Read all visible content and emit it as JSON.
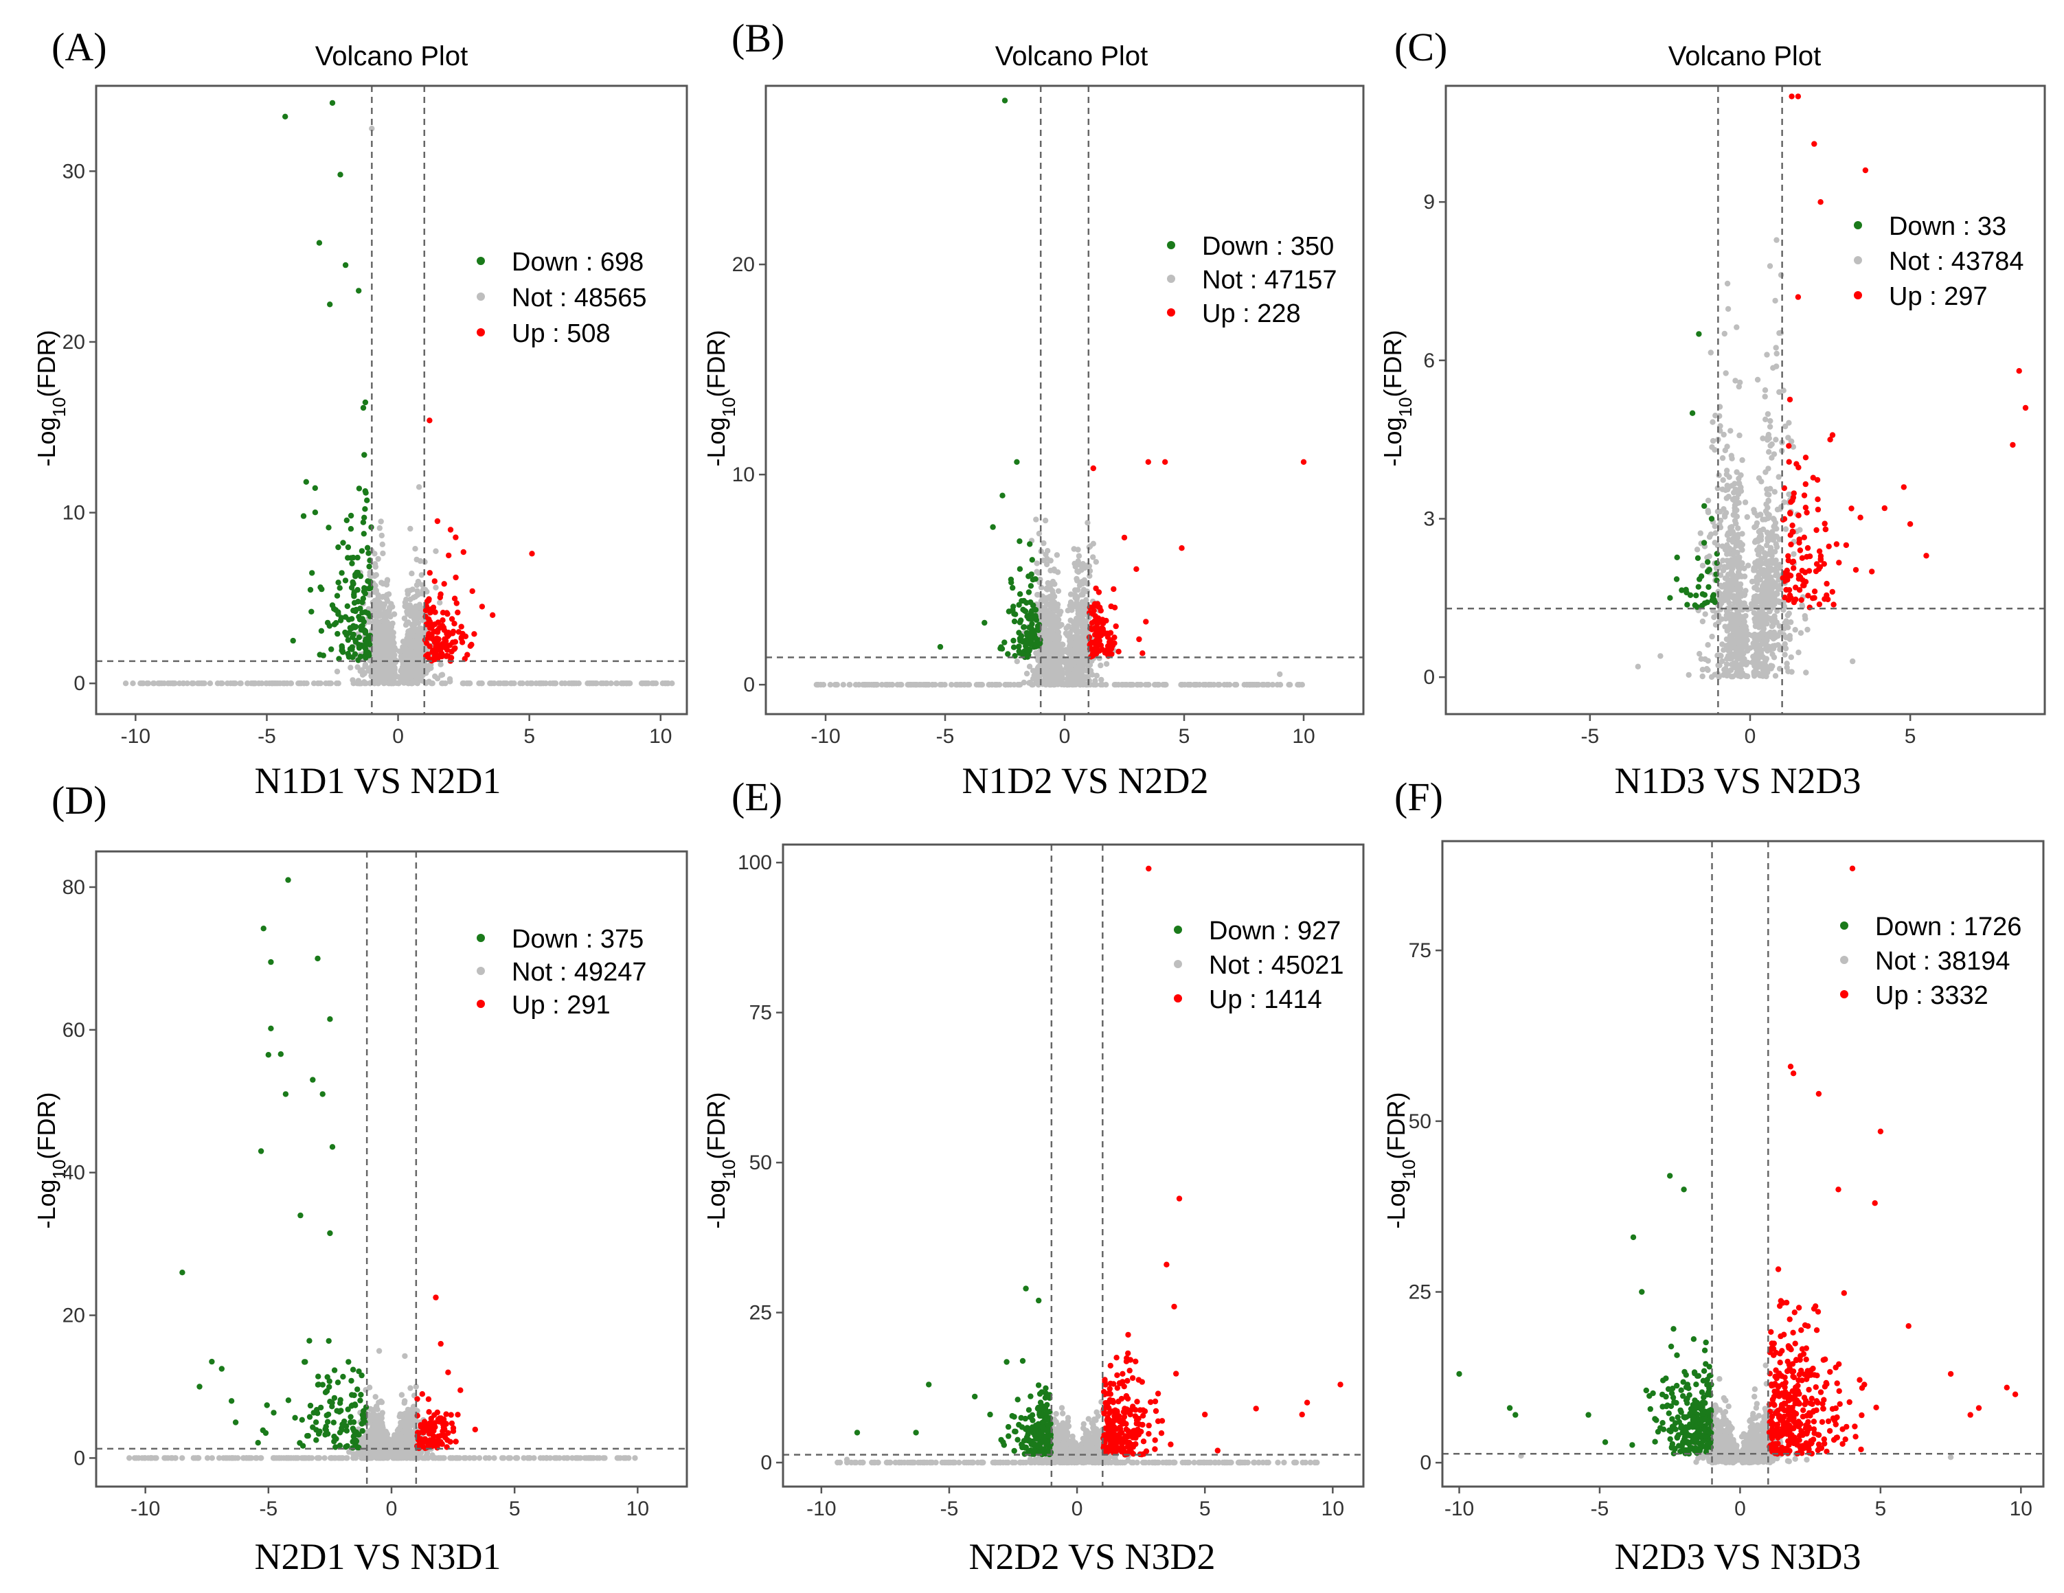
{
  "colors": {
    "down": "#1a7a1a",
    "not": "#bebebe",
    "up": "#ff0000",
    "frame": "#555555",
    "threshold_line": "#666666",
    "text": "#000000"
  },
  "chart_data": [
    {
      "type": "scatter",
      "panel_label": "(A)",
      "title": "Volcano Plot",
      "xlabel": "N1D1 VS N2D1",
      "ylabel_main": "-Log",
      "ylabel_sub": "10",
      "ylabel_arg": "(FDR)",
      "xlim": [
        -11.5,
        11
      ],
      "ylim": [
        -1.8,
        35
      ],
      "xticks": [
        -10,
        -5,
        0,
        5,
        10
      ],
      "yticks": [
        0,
        10,
        20,
        30
      ],
      "fc_threshold": 1,
      "fdr_threshold": 1.3,
      "legend": [
        {
          "label": "Down : 698",
          "class": "down"
        },
        {
          "label": "Not : 48565",
          "class": "not"
        },
        {
          "label": "Up : 508",
          "class": "up"
        }
      ],
      "counts": {
        "down": 698,
        "not": 48565,
        "up": 508
      },
      "spread": {
        "down_x": 0.9,
        "up_x": 0.8,
        "down_y": 4.5,
        "up_y": 2.2
      },
      "zero_row_range": [
        -10.5,
        10.5
      ],
      "outliers_down": [
        [
          -4.3,
          33.2
        ],
        [
          -2.5,
          34.0
        ],
        [
          -2.2,
          29.8
        ],
        [
          -3.0,
          25.8
        ],
        [
          -2.0,
          24.5
        ],
        [
          -2.6,
          22.2
        ],
        [
          -1.5,
          23.0
        ],
        [
          -3.5,
          11.8
        ],
        [
          -3.6,
          9.8
        ],
        [
          -4.0,
          2.5
        ]
      ],
      "outliers_up": [
        [
          1.2,
          15.4
        ],
        [
          2.0,
          9.0
        ],
        [
          3.6,
          4.0
        ],
        [
          5.1,
          7.6
        ],
        [
          3.2,
          4.5
        ],
        [
          1.5,
          9.5
        ]
      ],
      "outliers_not": [
        [
          -1.0,
          32.5
        ],
        [
          0.8,
          11.5
        ]
      ]
    },
    {
      "type": "scatter",
      "panel_label": "(B)",
      "title": "Volcano Plot",
      "xlabel": "N1D2 VS N2D2",
      "ylabel_main": "-Log",
      "ylabel_sub": "10",
      "ylabel_arg": "(FDR)",
      "xlim": [
        -12.5,
        12.5
      ],
      "ylim": [
        -1.4,
        28.5
      ],
      "xticks": [
        -10,
        -5,
        0,
        5,
        10
      ],
      "yticks": [
        0,
        10,
        20
      ],
      "fc_threshold": 1,
      "fdr_threshold": 1.3,
      "legend": [
        {
          "label": "Down : 350",
          "class": "down"
        },
        {
          "label": "Not : 47157",
          "class": "not"
        },
        {
          "label": "Up : 228",
          "class": "up"
        }
      ],
      "counts": {
        "down": 350,
        "not": 47157,
        "up": 228
      },
      "spread": {
        "down_x": 0.7,
        "up_x": 0.6,
        "down_y": 2.0,
        "up_y": 1.4
      },
      "zero_row_range": [
        -10.5,
        10.0
      ],
      "outliers_down": [
        [
          -2.5,
          27.8
        ],
        [
          -2.0,
          10.6
        ],
        [
          -2.6,
          9.0
        ],
        [
          -5.2,
          1.8
        ],
        [
          -3.0,
          7.5
        ]
      ],
      "outliers_up": [
        [
          3.5,
          10.6
        ],
        [
          4.2,
          10.6
        ],
        [
          10.0,
          10.6
        ],
        [
          4.9,
          6.5
        ],
        [
          2.5,
          7.0
        ],
        [
          1.2,
          10.3
        ],
        [
          3.0,
          5.5
        ],
        [
          3.4,
          3.0
        ]
      ],
      "outliers_not": [
        [
          9.0,
          0.5
        ]
      ]
    },
    {
      "type": "scatter",
      "panel_label": "(C)",
      "title": "Volcano Plot",
      "xlabel": "N1D3 VS N2D3",
      "ylabel_main": "-Log",
      "ylabel_sub": "10",
      "ylabel_arg": "(FDR)",
      "xlim": [
        -9.5,
        9.2
      ],
      "ylim": [
        -0.7,
        11.2
      ],
      "xticks": [
        -5,
        0,
        5
      ],
      "yticks": [
        0,
        3,
        6,
        9
      ],
      "fc_threshold": 1,
      "fdr_threshold": 1.3,
      "legend": [
        {
          "label": "Down : 33",
          "class": "down"
        },
        {
          "label": "Not : 43784",
          "class": "not"
        },
        {
          "label": "Up : 297",
          "class": "up"
        }
      ],
      "counts": {
        "down": 33,
        "not": 43784,
        "up": 297
      },
      "spread": {
        "down_x": 0.6,
        "up_x": 0.9,
        "down_y": 0.9,
        "up_y": 1.4
      },
      "zero_row_range": [
        0,
        0
      ],
      "outliers_down": [
        [
          -1.6,
          6.5
        ],
        [
          -1.8,
          5.0
        ],
        [
          -1.2,
          3.0
        ],
        [
          -2.5,
          1.5
        ]
      ],
      "outliers_up": [
        [
          1.3,
          11.0
        ],
        [
          1.5,
          11.0
        ],
        [
          2.0,
          10.1
        ],
        [
          3.6,
          9.6
        ],
        [
          2.2,
          9.0
        ],
        [
          8.4,
          5.8
        ],
        [
          8.6,
          5.1
        ],
        [
          8.2,
          4.4
        ],
        [
          4.8,
          3.6
        ],
        [
          5.0,
          2.9
        ],
        [
          5.5,
          2.3
        ],
        [
          3.0,
          2.5
        ],
        [
          2.5,
          4.5
        ],
        [
          4.2,
          3.2
        ],
        [
          1.5,
          7.2
        ],
        [
          3.8,
          2.0
        ]
      ],
      "outliers_not": [
        [
          -1.0,
          4.5
        ],
        [
          -2.8,
          0.4
        ],
        [
          3.2,
          0.3
        ],
        [
          -3.5,
          0.2
        ]
      ]
    },
    {
      "type": "scatter",
      "panel_label": "(D)",
      "title": "",
      "xlabel": "N2D1 VS N3D1",
      "ylabel_main": "-Log",
      "ylabel_sub": "10",
      "ylabel_arg": "(FDR)",
      "xlim": [
        -12,
        12
      ],
      "ylim": [
        -4,
        85
      ],
      "xticks": [
        -10,
        -5,
        0,
        5,
        10
      ],
      "yticks": [
        0,
        20,
        40,
        60,
        80
      ],
      "fc_threshold": 1,
      "fdr_threshold": 1.3,
      "legend": [
        {
          "label": "Down : 375",
          "class": "down"
        },
        {
          "label": "Not : 49247",
          "class": "not"
        },
        {
          "label": "Up : 291",
          "class": "up"
        }
      ],
      "counts": {
        "down": 375,
        "not": 49247,
        "up": 291
      },
      "spread": {
        "down_x": 1.6,
        "up_x": 0.8,
        "down_y": 6.0,
        "up_y": 3.0
      },
      "zero_row_range": [
        -11,
        10
      ],
      "outliers_down": [
        [
          -4.2,
          81.0
        ],
        [
          -5.2,
          74.2
        ],
        [
          -4.9,
          69.5
        ],
        [
          -3.0,
          70.0
        ],
        [
          -2.5,
          61.5
        ],
        [
          -4.9,
          60.2
        ],
        [
          -4.5,
          56.6
        ],
        [
          -5.0,
          56.5
        ],
        [
          -4.3,
          51.0
        ],
        [
          -2.8,
          51.0
        ],
        [
          -3.2,
          53.0
        ],
        [
          -5.3,
          43.0
        ],
        [
          -2.4,
          43.6
        ],
        [
          -8.5,
          26.0
        ],
        [
          -7.3,
          13.5
        ],
        [
          -6.9,
          12.5
        ],
        [
          -7.8,
          10.0
        ],
        [
          -6.5,
          8.0
        ],
        [
          -3.7,
          34.0
        ],
        [
          -2.5,
          31.5
        ]
      ],
      "outliers_up": [
        [
          1.8,
          22.5
        ],
        [
          2.0,
          16.0
        ],
        [
          2.8,
          9.5
        ],
        [
          3.4,
          4.0
        ],
        [
          2.3,
          12.0
        ]
      ],
      "outliers_not": [
        [
          -0.5,
          15.0
        ],
        [
          1.0,
          10.0
        ]
      ]
    },
    {
      "type": "scatter",
      "panel_label": "(E)",
      "title": "",
      "xlabel": "N2D2 VS N3D2",
      "ylabel_main": "-Log",
      "ylabel_sub": "10",
      "ylabel_arg": "(FDR)",
      "xlim": [
        -11.5,
        11.2
      ],
      "ylim": [
        -4,
        103
      ],
      "xticks": [
        -10,
        -5,
        0,
        5,
        10
      ],
      "yticks": [
        0,
        25,
        50,
        75,
        100
      ],
      "fc_threshold": 1,
      "fdr_threshold": 1.3,
      "legend": [
        {
          "label": "Down : 927",
          "class": "down"
        },
        {
          "label": "Not : 45021",
          "class": "not"
        },
        {
          "label": "Up : 1414",
          "class": "up"
        }
      ],
      "counts": {
        "down": 927,
        "not": 45021,
        "up": 1414
      },
      "spread": {
        "down_x": 0.7,
        "up_x": 0.9,
        "down_y": 5.0,
        "up_y": 7.0
      },
      "zero_row_range": [
        -9.5,
        9.5
      ],
      "outliers_down": [
        [
          -2.0,
          29.0
        ],
        [
          -1.5,
          27.0
        ],
        [
          -5.8,
          13.0
        ],
        [
          -8.6,
          5.0
        ],
        [
          -6.3,
          5.0
        ],
        [
          -4.0,
          11.0
        ],
        [
          -3.4,
          8.0
        ]
      ],
      "outliers_up": [
        [
          2.8,
          99.0
        ],
        [
          4.0,
          44.0
        ],
        [
          3.5,
          33.0
        ],
        [
          8.8,
          8.0
        ],
        [
          10.3,
          13.0
        ],
        [
          7.0,
          9.0
        ],
        [
          9.0,
          10.0
        ],
        [
          5.0,
          8.0
        ],
        [
          5.5,
          2.0
        ],
        [
          3.8,
          26.0
        ]
      ],
      "outliers_not": [
        [
          -9.0,
          0.5
        ]
      ]
    },
    {
      "type": "scatter",
      "panel_label": "(F)",
      "title": "",
      "xlabel": "N2D3 VS N3D3",
      "ylabel_main": "-Log",
      "ylabel_sub": "10",
      "ylabel_arg": "(FDR)",
      "xlim": [
        -10.6,
        10.8
      ],
      "ylim": [
        -3.5,
        91
      ],
      "xticks": [
        -10,
        -5,
        0,
        5,
        10
      ],
      "yticks": [
        0,
        25,
        50,
        75
      ],
      "fc_threshold": 1,
      "fdr_threshold": 1.3,
      "legend": [
        {
          "label": "Down : 1726",
          "class": "down"
        },
        {
          "label": "Not : 38194",
          "class": "not"
        },
        {
          "label": "Up : 3332",
          "class": "up"
        }
      ],
      "counts": {
        "down": 1726,
        "not": 38194,
        "up": 3332
      },
      "spread": {
        "down_x": 0.9,
        "up_x": 1.2,
        "down_y": 7.0,
        "up_y": 9.0
      },
      "zero_row_range": [
        0,
        0
      ],
      "outliers_down": [
        [
          -10.0,
          13.0
        ],
        [
          -8.2,
          8.0
        ],
        [
          -8.0,
          7.0
        ],
        [
          -5.4,
          7.0
        ],
        [
          -2.5,
          42.0
        ],
        [
          -2.0,
          40.0
        ],
        [
          -3.8,
          33.0
        ],
        [
          -3.5,
          25.0
        ],
        [
          -4.8,
          3.0
        ]
      ],
      "outliers_up": [
        [
          4.0,
          87.0
        ],
        [
          1.8,
          58.0
        ],
        [
          1.9,
          57.0
        ],
        [
          2.8,
          54.0
        ],
        [
          5.0,
          48.5
        ],
        [
          3.5,
          40.0
        ],
        [
          7.5,
          13.0
        ],
        [
          8.5,
          8.0
        ],
        [
          9.5,
          11.0
        ],
        [
          9.8,
          10.0
        ],
        [
          8.2,
          7.0
        ],
        [
          4.8,
          38.0
        ],
        [
          6.0,
          20.0
        ]
      ],
      "outliers_not": [
        [
          -7.8,
          1.0
        ],
        [
          7.5,
          0.8
        ]
      ]
    }
  ]
}
